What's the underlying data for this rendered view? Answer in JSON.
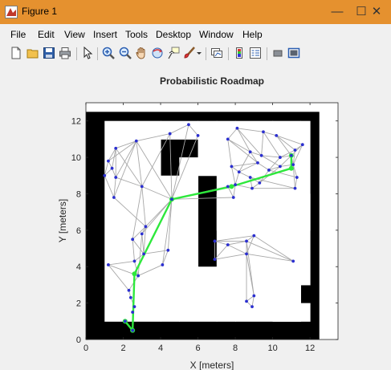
{
  "window": {
    "title": "Figure 1",
    "controls": {
      "minimize": "—",
      "maximize": "☐",
      "close": "✕"
    },
    "accent": "#e5912f"
  },
  "menu": [
    "File",
    "Edit",
    "View",
    "Insert",
    "Tools",
    "Desktop",
    "Window",
    "Help"
  ],
  "toolbar": [
    "new-figure",
    "open-file",
    "save",
    "print",
    "edit-plot-arrow",
    "zoom-in",
    "zoom-out",
    "pan-hand",
    "rotate-3d",
    "data-cursor",
    "brush",
    "brush-menu",
    "link-plot",
    "insert-colorbar",
    "insert-legend",
    "hide-plot-tools",
    "show-plot-tools"
  ],
  "chart_data": {
    "type": "scatter",
    "title": "Probabilistic Roadmap",
    "xlabel": "X [meters]",
    "ylabel": "Y [meters]",
    "xlim": [
      0,
      13.5
    ],
    "ylim": [
      0,
      13
    ],
    "xticks": [
      "0",
      "2",
      "4",
      "6",
      "8",
      "10",
      "12"
    ],
    "yticks": [
      "0",
      "2",
      "4",
      "6",
      "8",
      "10",
      "12"
    ],
    "grid": false,
    "map": {
      "extent": [
        [
          0,
          12.5
        ],
        [
          0,
          12.5
        ]
      ],
      "free_cells": [
        [
          1,
          4,
          1,
          12
        ],
        [
          4,
          5,
          1,
          9
        ],
        [
          5,
          7,
          1,
          4
        ],
        [
          5,
          6,
          4,
          10
        ],
        [
          6,
          7,
          9,
          12
        ],
        [
          4,
          6,
          11,
          12
        ],
        [
          7,
          8,
          1,
          12
        ],
        [
          8,
          12,
          1,
          2
        ],
        [
          8,
          10,
          2,
          12
        ],
        [
          10,
          11.5,
          1,
          12
        ],
        [
          11.5,
          12,
          3,
          12
        ],
        [
          7,
          12,
          6,
          8
        ]
      ]
    },
    "nodes": [
      [
        5.5,
        11.8
      ],
      [
        4.5,
        11.3
      ],
      [
        6.0,
        11.2
      ],
      [
        2.7,
        10.9
      ],
      [
        1.6,
        10.5
      ],
      [
        1.2,
        9.8
      ],
      [
        1.4,
        9.4
      ],
      [
        1.0,
        9.0
      ],
      [
        1.6,
        8.9
      ],
      [
        3.0,
        8.4
      ],
      [
        1.5,
        7.8
      ],
      [
        4.6,
        7.7
      ],
      [
        3.2,
        6.2
      ],
      [
        3.0,
        5.8
      ],
      [
        2.5,
        5.5
      ],
      [
        4.4,
        4.9
      ],
      [
        3.1,
        4.7
      ],
      [
        2.6,
        4.3
      ],
      [
        4.1,
        4.1
      ],
      [
        1.2,
        4.1
      ],
      [
        2.8,
        3.5
      ],
      [
        2.3,
        2.7
      ],
      [
        2.4,
        2.3
      ],
      [
        2.6,
        1.8
      ],
      [
        2.5,
        1.5
      ],
      [
        2.1,
        1.0
      ],
      [
        2.5,
        0.5
      ],
      [
        7.6,
        11.0
      ],
      [
        8.1,
        11.6
      ],
      [
        9.5,
        11.4
      ],
      [
        10.2,
        11.2
      ],
      [
        11.6,
        10.7
      ],
      [
        11.2,
        10.4
      ],
      [
        8.8,
        10.3
      ],
      [
        9.4,
        10.1
      ],
      [
        10.4,
        10.0
      ],
      [
        11.0,
        10.1
      ],
      [
        7.8,
        9.5
      ],
      [
        9.2,
        9.7
      ],
      [
        10.4,
        9.5
      ],
      [
        8.2,
        9.2
      ],
      [
        9.8,
        9.3
      ],
      [
        11.1,
        9.6
      ],
      [
        8.8,
        8.9
      ],
      [
        9.3,
        8.6
      ],
      [
        11.3,
        8.9
      ],
      [
        8.0,
        8.5
      ],
      [
        8.9,
        8.3
      ],
      [
        7.6,
        8.4
      ],
      [
        11.2,
        8.3
      ],
      [
        7.9,
        7.8
      ],
      [
        6.9,
        5.4
      ],
      [
        7.6,
        5.2
      ],
      [
        8.6,
        5.4
      ],
      [
        9.0,
        5.7
      ],
      [
        8.6,
        4.7
      ],
      [
        6.9,
        4.4
      ],
      [
        11.1,
        4.3
      ],
      [
        9.0,
        2.4
      ],
      [
        8.6,
        2.1
      ],
      [
        8.9,
        1.8
      ]
    ],
    "edges": [
      [
        0,
        1
      ],
      [
        0,
        2
      ],
      [
        1,
        3
      ],
      [
        1,
        9
      ],
      [
        3,
        4
      ],
      [
        3,
        5
      ],
      [
        3,
        9
      ],
      [
        3,
        11
      ],
      [
        4,
        5
      ],
      [
        4,
        6
      ],
      [
        4,
        8
      ],
      [
        5,
        6
      ],
      [
        5,
        7
      ],
      [
        6,
        7
      ],
      [
        6,
        8
      ],
      [
        7,
        10
      ],
      [
        8,
        9
      ],
      [
        8,
        10
      ],
      [
        9,
        11
      ],
      [
        3,
        8
      ],
      [
        9,
        12
      ],
      [
        10,
        12
      ],
      [
        11,
        12
      ],
      [
        11,
        13
      ],
      [
        12,
        13
      ],
      [
        12,
        14
      ],
      [
        13,
        16
      ],
      [
        14,
        16
      ],
      [
        15,
        16
      ],
      [
        15,
        18
      ],
      [
        16,
        17
      ],
      [
        17,
        19
      ],
      [
        17,
        20
      ],
      [
        18,
        20
      ],
      [
        19,
        20
      ],
      [
        20,
        21
      ],
      [
        21,
        22
      ],
      [
        22,
        23
      ],
      [
        23,
        24
      ],
      [
        24,
        26
      ],
      [
        19,
        21
      ],
      [
        18,
        11
      ],
      [
        15,
        11
      ],
      [
        12,
        16
      ],
      [
        13,
        20
      ],
      [
        14,
        17
      ],
      [
        1,
        11
      ],
      [
        2,
        11
      ],
      [
        9,
        14
      ],
      [
        0,
        11
      ],
      [
        3,
        10
      ],
      [
        4,
        9
      ],
      [
        11,
        48
      ],
      [
        11,
        46
      ],
      [
        11,
        50
      ],
      [
        27,
        28
      ],
      [
        27,
        33
      ],
      [
        27,
        37
      ],
      [
        28,
        29
      ],
      [
        28,
        33
      ],
      [
        29,
        30
      ],
      [
        29,
        34
      ],
      [
        30,
        31
      ],
      [
        30,
        32
      ],
      [
        31,
        32
      ],
      [
        31,
        36
      ],
      [
        32,
        35
      ],
      [
        32,
        42
      ],
      [
        33,
        34
      ],
      [
        33,
        38
      ],
      [
        34,
        35
      ],
      [
        34,
        39
      ],
      [
        35,
        36
      ],
      [
        35,
        41
      ],
      [
        36,
        42
      ],
      [
        37,
        38
      ],
      [
        37,
        40
      ],
      [
        38,
        40
      ],
      [
        38,
        41
      ],
      [
        39,
        41
      ],
      [
        39,
        44
      ],
      [
        40,
        43
      ],
      [
        40,
        46
      ],
      [
        41,
        44
      ],
      [
        42,
        45
      ],
      [
        43,
        44
      ],
      [
        43,
        47
      ],
      [
        44,
        47
      ],
      [
        45,
        49
      ],
      [
        46,
        47
      ],
      [
        46,
        48
      ],
      [
        47,
        49
      ],
      [
        48,
        50
      ],
      [
        46,
        50
      ],
      [
        27,
        38
      ],
      [
        28,
        34
      ],
      [
        29,
        35
      ],
      [
        30,
        36
      ],
      [
        31,
        42
      ],
      [
        33,
        40
      ],
      [
        37,
        46
      ],
      [
        39,
        42
      ],
      [
        36,
        39
      ],
      [
        41,
        45
      ],
      [
        43,
        49
      ],
      [
        42,
        49
      ],
      [
        51,
        52
      ],
      [
        51,
        53
      ],
      [
        51,
        56
      ],
      [
        52,
        53
      ],
      [
        52,
        55
      ],
      [
        52,
        56
      ],
      [
        53,
        54
      ],
      [
        53,
        55
      ],
      [
        54,
        55
      ],
      [
        55,
        57
      ],
      [
        54,
        57
      ],
      [
        53,
        58
      ],
      [
        55,
        58
      ],
      [
        55,
        59
      ],
      [
        58,
        59
      ],
      [
        59,
        60
      ],
      [
        58,
        60
      ],
      [
        56,
        55
      ],
      [
        54,
        51
      ],
      [
        57,
        53
      ]
    ],
    "path": [
      [
        2.1,
        1.0
      ],
      [
        2.5,
        0.5
      ],
      [
        2.6,
        3.6
      ],
      [
        4.6,
        7.7
      ],
      [
        7.8,
        8.4
      ],
      [
        11.0,
        9.4
      ],
      [
        11.0,
        10.1
      ]
    ],
    "colors": {
      "obstacle": "#000000",
      "free": "#ffffff",
      "edge": "#a8a8a8",
      "node": "#2b2fd0",
      "path": "#2ee83c"
    }
  }
}
